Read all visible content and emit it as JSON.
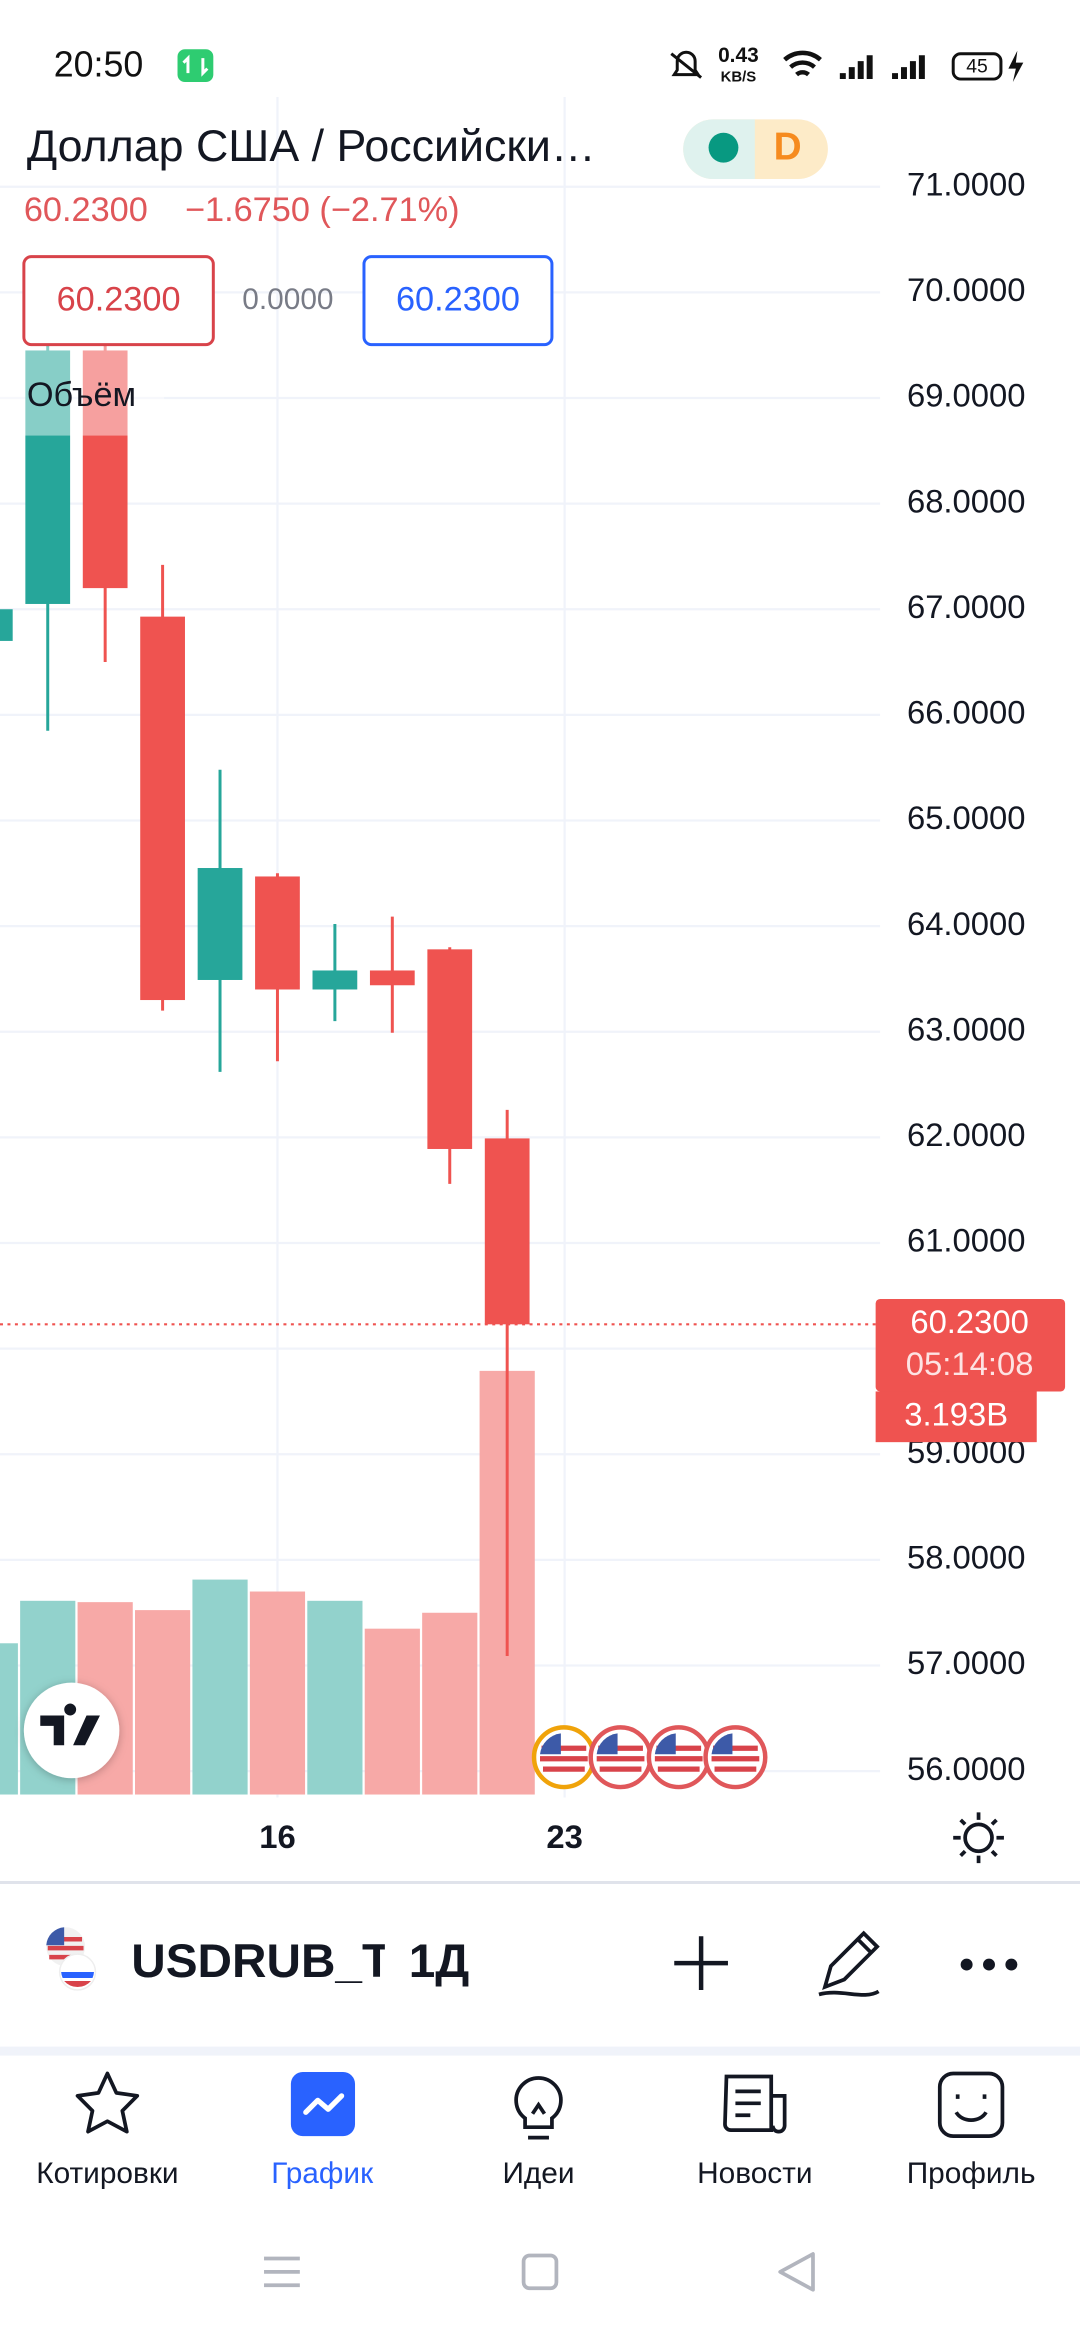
{
  "status_bar": {
    "time": "20:50",
    "speed": "0.43",
    "speed_unit": "KB/S",
    "battery": "45"
  },
  "header": {
    "title": "Доллар США / Российски…",
    "interval_badge": "D",
    "price": "60.2300",
    "change": "−1.6750 (−2.71%)",
    "bid": "60.2300",
    "spread": "0.0000",
    "ask": "60.2300",
    "volume_legend": "Объём"
  },
  "chart_data": {
    "type": "candlestick",
    "categories": [
      null,
      null,
      null,
      null,
      null,
      "16",
      null,
      null,
      null,
      null,
      "23"
    ],
    "open": [
      66.7,
      67.05,
      69.45,
      66.93,
      63.49,
      64.47,
      63.4,
      63.58,
      63.78,
      61.99,
      null
    ],
    "high": [
      67.1,
      69.5,
      69.5,
      67.42,
      65.48,
      64.5,
      64.02,
      64.09,
      63.8,
      62.26,
      null
    ],
    "low": [
      66.5,
      65.85,
      66.5,
      63.2,
      62.62,
      62.72,
      63.1,
      62.99,
      61.56,
      57.09,
      null
    ],
    "close": [
      67.0,
      69.45,
      67.2,
      63.3,
      64.55,
      63.4,
      63.58,
      63.44,
      61.89,
      60.23,
      null
    ],
    "volume": [
      1.14,
      1.46,
      1.45,
      1.39,
      1.62,
      1.53,
      1.46,
      1.25,
      1.37,
      3.193,
      null
    ],
    "up_color": "#26a69a",
    "down_color": "#ef5350",
    "volume_up_color": "#92d2cc",
    "volume_down_color": "#f7a9a7",
    "ylim": [
      55.75,
      71.85
    ],
    "yticks": [
      {
        "value": 71,
        "label": "71.0000"
      },
      {
        "value": 70,
        "label": "70.0000"
      },
      {
        "value": 69,
        "label": "69.0000"
      },
      {
        "value": 68,
        "label": "68.0000"
      },
      {
        "value": 67,
        "label": "67.0000"
      },
      {
        "value": 66,
        "label": "66.0000"
      },
      {
        "value": 65,
        "label": "65.0000"
      },
      {
        "value": 64,
        "label": "64.0000"
      },
      {
        "value": 63,
        "label": "63.0000"
      },
      {
        "value": 62,
        "label": "62.0000"
      },
      {
        "value": 61,
        "label": "61.0000"
      },
      {
        "value": 60,
        "label": "60.0000"
      },
      {
        "value": 59,
        "label": "59.0000"
      },
      {
        "value": 58,
        "label": "58.0000"
      },
      {
        "value": 57,
        "label": "57.0000"
      },
      {
        "value": 56,
        "label": "56.0000"
      }
    ],
    "grid": true,
    "price_line": {
      "value": 60.23,
      "label": "60.2300",
      "countdown": "05:14:08"
    },
    "volume_label": {
      "value": 3.193,
      "label": "3.193B"
    }
  },
  "toolbar": {
    "symbol": "USDRUB_TC",
    "interval": "1Д"
  },
  "nav": [
    {
      "label": "Котировки"
    },
    {
      "label": "График"
    },
    {
      "label": "Идеи"
    },
    {
      "label": "Новости"
    },
    {
      "label": "Профиль"
    }
  ]
}
